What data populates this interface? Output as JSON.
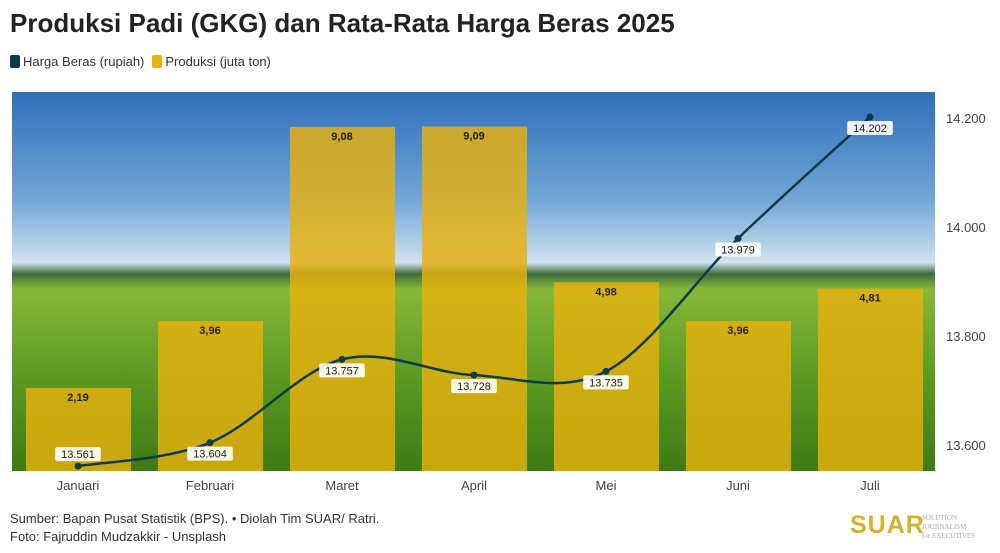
{
  "chart_data": {
    "type": "bar+line",
    "title": "Produksi Padi (GKG) dan Rata-Rata Harga Beras 2025",
    "categories": [
      "Januari",
      "Februari",
      "Maret",
      "April",
      "Mei",
      "Juni",
      "Juli"
    ],
    "series": [
      {
        "name": "Harga Beras (rupiah)",
        "type": "line",
        "axis": "right",
        "color": "#0d3b4a",
        "values": [
          13561,
          13604,
          13757,
          13728,
          13735,
          13979,
          14202
        ],
        "labels": [
          "13.561",
          "13.604",
          "13.757",
          "13.728",
          "13.735",
          "13.979",
          "14.202"
        ]
      },
      {
        "name": "Produksi (juta ton)",
        "type": "bar",
        "axis": "hidden-left",
        "color": "#e8b10e",
        "values": [
          2.19,
          3.96,
          9.08,
          9.09,
          4.98,
          3.96,
          4.81
        ],
        "labels": [
          "2,19",
          "3,96",
          "9,08",
          "9,09",
          "4,98",
          "3,96",
          "4,81"
        ]
      }
    ],
    "right_axis": {
      "ticks": [
        13600,
        13800,
        14000,
        14200
      ],
      "tick_labels": [
        "13.600",
        "13.800",
        "14.000",
        "14.200"
      ],
      "range": [
        13552,
        14248
      ]
    },
    "left_range": [
      0,
      10
    ],
    "legend": "top-left",
    "grid": false
  },
  "footer": {
    "source": "Sumber: Bapan Pusat Statistik (BPS). • Diolah Tim SUAR/ Ratri.",
    "photo": "Foto: Fajruddin Mudzakkir - Unsplash"
  },
  "logo": {
    "name": "SUAR",
    "tagline1": "SOLUTION JOURNALISM",
    "tagline2": "for EXECUTIVES"
  }
}
